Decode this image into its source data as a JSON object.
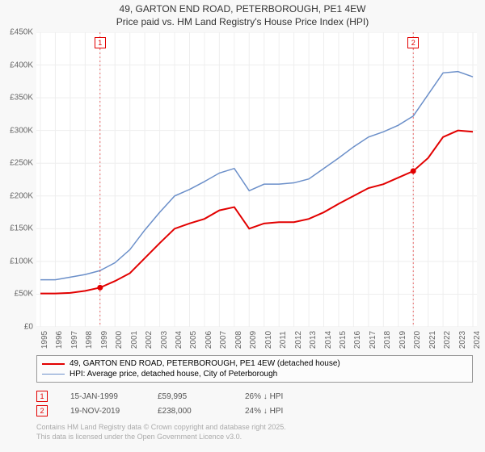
{
  "title_line1": "49, GARTON END ROAD, PETERBOROUGH, PE1 4EW",
  "title_line2": "Price paid vs. HM Land Registry's House Price Index (HPI)",
  "chart": {
    "type": "line",
    "background_color": "#ffffff",
    "grid_color": "#eeeeee",
    "axis_color": "#999999",
    "label_fontsize": 10,
    "title_fontsize": 12,
    "x_years": [
      "1995",
      "1996",
      "1997",
      "1998",
      "1999",
      "2000",
      "2001",
      "2002",
      "2003",
      "2004",
      "2005",
      "2006",
      "2007",
      "2008",
      "2009",
      "2010",
      "2011",
      "2012",
      "2013",
      "2014",
      "2015",
      "2016",
      "2017",
      "2018",
      "2019",
      "2020",
      "2021",
      "2022",
      "2023",
      "2024"
    ],
    "y_ticks": [
      "£0",
      "£50K",
      "£100K",
      "£150K",
      "£200K",
      "£250K",
      "£300K",
      "£350K",
      "£400K",
      "£450K"
    ],
    "ylim": [
      0,
      450000
    ],
    "series": [
      {
        "name": "price_paid",
        "label": "49, GARTON END ROAD, PETERBOROUGH, PE1 4EW (detached house)",
        "color": "#e20000",
        "line_width": 2,
        "values_by_year": {
          "1995": 51000,
          "1996": 51000,
          "1997": 52000,
          "1998": 55000,
          "1999": 60000,
          "2000": 70000,
          "2001": 82000,
          "2002": 105000,
          "2003": 128000,
          "2004": 150000,
          "2005": 158000,
          "2006": 165000,
          "2007": 178000,
          "2008": 183000,
          "2009": 150000,
          "2010": 158000,
          "2011": 160000,
          "2012": 160000,
          "2013": 165000,
          "2014": 175000,
          "2015": 188000,
          "2016": 200000,
          "2017": 212000,
          "2018": 218000,
          "2019": 228000,
          "2020": 238000,
          "2021": 258000,
          "2022": 290000,
          "2023": 300000,
          "2024": 298000
        }
      },
      {
        "name": "hpi",
        "label": "HPI: Average price, detached house, City of Peterborough",
        "color": "#6b8fc9",
        "line_width": 1.5,
        "values_by_year": {
          "1995": 72000,
          "1996": 72000,
          "1997": 76000,
          "1998": 80000,
          "1999": 86000,
          "2000": 98000,
          "2001": 118000,
          "2002": 148000,
          "2003": 175000,
          "2004": 200000,
          "2005": 210000,
          "2006": 222000,
          "2007": 235000,
          "2008": 242000,
          "2009": 208000,
          "2010": 218000,
          "2011": 218000,
          "2012": 220000,
          "2013": 226000,
          "2014": 242000,
          "2015": 258000,
          "2016": 275000,
          "2017": 290000,
          "2018": 298000,
          "2019": 308000,
          "2020": 322000,
          "2021": 355000,
          "2022": 388000,
          "2023": 390000,
          "2024": 382000
        }
      }
    ],
    "markers": [
      {
        "num": "1",
        "year": "1999",
        "color": "#e20000"
      },
      {
        "num": "2",
        "year": "2020",
        "color": "#e20000"
      }
    ]
  },
  "legend": {
    "items": [
      {
        "swatch_color": "#e20000",
        "swatch_height": 2,
        "text": "49, GARTON END ROAD, PETERBOROUGH, PE1 4EW (detached house)"
      },
      {
        "swatch_color": "#6b8fc9",
        "swatch_height": 1,
        "text": "HPI: Average price, detached house, City of Peterborough"
      }
    ]
  },
  "transactions": [
    {
      "num": "1",
      "badge_color": "#e20000",
      "date": "15-JAN-1999",
      "price": "£59,995",
      "diff": "26% ↓ HPI"
    },
    {
      "num": "2",
      "badge_color": "#e20000",
      "date": "19-NOV-2019",
      "price": "£238,000",
      "diff": "24% ↓ HPI"
    }
  ],
  "footer_line1": "Contains HM Land Registry data © Crown copyright and database right 2025.",
  "footer_line2": "This data is licensed under the Open Government Licence v3.0."
}
